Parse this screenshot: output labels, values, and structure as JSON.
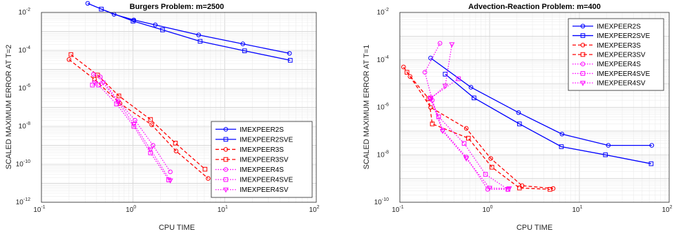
{
  "chart_data": [
    {
      "type": "line",
      "title": "Burgers Problem: m=2500",
      "xlabel": "CPU TIME",
      "ylabel": "SCALED MAXIMUM ERROR AT T=2",
      "xscale": "log",
      "yscale": "log",
      "xlim": [
        0.1,
        100
      ],
      "ylim": [
        1e-12,
        0.01
      ],
      "grid": true,
      "legend_position": "bottom-right",
      "series": [
        {
          "name": "IMEXPEER2S",
          "color": "#0000ff",
          "dash": "solid",
          "marker": "circle",
          "x": [
            0.32,
            0.62,
            1.02,
            1.75,
            5.2,
            15.8,
            51
          ],
          "y": [
            0.03,
            0.008,
            0.004,
            0.0022,
            0.00065,
            0.00022,
            7e-05
          ]
        },
        {
          "name": "IMEXPEER2SVE",
          "color": "#0000ff",
          "dash": "solid",
          "marker": "square",
          "x": [
            0.45,
            1.0,
            2.1,
            5.4,
            16.5,
            52
          ],
          "y": [
            0.015,
            0.0035,
            0.0012,
            0.0003,
            9.5e-05,
            3e-05
          ]
        },
        {
          "name": "IMEXPEER3S",
          "color": "#ff0000",
          "dash": "dashed",
          "marker": "circle",
          "x": [
            0.2,
            0.38,
            0.72,
            1.6,
            2.95,
            6.6
          ],
          "y": [
            3.3e-05,
            3e-06,
            1.6e-07,
            1.2e-08,
            5e-10,
            1.8e-11
          ]
        },
        {
          "name": "IMEXPEER3SV",
          "color": "#ff0000",
          "dash": "dashed",
          "marker": "square",
          "x": [
            0.21,
            0.41,
            0.7,
            1.55,
            2.9,
            6.1
          ],
          "y": [
            6e-05,
            5e-06,
            4e-07,
            2.3e-08,
            1.3e-09,
            5.5e-11
          ]
        },
        {
          "name": "IMEXPEER4S",
          "color": "#ff00ff",
          "dash": "dotted",
          "marker": "circle",
          "x": [
            0.37,
            0.44,
            0.69,
            1.05,
            1.65,
            2.55
          ],
          "y": [
            5.5e-06,
            4e-06,
            2.1e-07,
            2.1e-08,
            1e-09,
            4e-11
          ]
        },
        {
          "name": "IMEXPEER4SVE",
          "color": "#ff00ff",
          "dash": "dotted",
          "marker": "square",
          "x": [
            0.36,
            0.42,
            0.66,
            1.02,
            1.55,
            2.45
          ],
          "y": [
            1.5e-06,
            1.5e-06,
            1.5e-07,
            1e-08,
            4e-10,
            1.5e-11
          ]
        },
        {
          "name": "IMEXPEER4SV",
          "color": "#ff00ff",
          "dash": "dotted",
          "marker": "triangle",
          "x": [
            0.38,
            0.47,
            0.69,
            1.02,
            1.55,
            2.55
          ],
          "y": [
            2e-06,
            2e-06,
            1.8e-07,
            1.3e-08,
            6e-10,
            1.4e-11
          ]
        }
      ]
    },
    {
      "type": "line",
      "title": "Advection-Reaction Problem: m=400",
      "xlabel": "CPU TIME",
      "ylabel": "SCALED MAXIMUM ERROR AT T=1",
      "xscale": "log",
      "yscale": "log",
      "xlim": [
        0.1,
        100
      ],
      "ylim": [
        1e-10,
        0.01
      ],
      "grid": true,
      "legend_position": "top-right",
      "series": [
        {
          "name": "IMEXPEER2S",
          "color": "#0000ff",
          "dash": "solid",
          "marker": "circle",
          "x": [
            0.22,
            0.62,
            2.1,
            6.4,
            21,
            64
          ],
          "y": [
            0.00012,
            7e-06,
            6e-07,
            7.5e-08,
            2.5e-08,
            2.5e-08
          ]
        },
        {
          "name": "IMEXPEER2SVE",
          "color": "#0000ff",
          "dash": "solid",
          "marker": "square",
          "x": [
            0.32,
            0.67,
            2.15,
            6.3,
            19.5,
            63
          ],
          "y": [
            2.5e-05,
            2.5e-06,
            2e-07,
            2.2e-08,
            1e-08,
            4.2e-09
          ]
        },
        {
          "name": "IMEXPEER3S",
          "color": "#ff0000",
          "dash": "dashed",
          "marker": "circle",
          "x": [
            0.11,
            0.13,
            0.22,
            0.55,
            1.03,
            2.3,
            5.1
          ],
          "y": [
            5e-05,
            2e-05,
            1e-06,
            1.3e-07,
            7e-09,
            5e-10,
            3.8e-10
          ]
        },
        {
          "name": "IMEXPEER3SV",
          "color": "#ff0000",
          "dash": "dashed",
          "marker": "square",
          "x": [
            0.12,
            0.21,
            0.23,
            0.58,
            1.06,
            2.15,
            4.7
          ],
          "y": [
            3e-05,
            2.3e-06,
            2e-07,
            5e-08,
            3e-09,
            4e-10,
            3.5e-10
          ]
        },
        {
          "name": "IMEXPEER4S",
          "color": "#ff00ff",
          "dash": "dotted",
          "marker": "circle",
          "x": [
            0.28,
            0.19,
            0.23,
            0.3,
            0.55,
            0.95,
            1.6
          ],
          "y": [
            0.0005,
            3e-05,
            2e-06,
            1.1e-07,
            8e-09,
            3.5e-10,
            3.5e-10
          ]
        },
        {
          "name": "IMEXPEER4SVE",
          "color": "#ff00ff",
          "dash": "dotted",
          "marker": "square",
          "x": [
            0.45,
            0.22,
            0.27,
            0.52,
            0.9,
            1.6
          ],
          "y": [
            1.6e-05,
            2.5e-06,
            4e-07,
            3e-08,
            1.5e-09,
            3.5e-10
          ]
        },
        {
          "name": "IMEXPEER4SV",
          "color": "#ff00ff",
          "dash": "dotted",
          "marker": "triangle",
          "x": [
            0.38,
            0.32,
            0.22,
            0.3,
            0.55,
            1.0,
            1.65
          ],
          "y": [
            0.00045,
            8e-06,
            2.3e-06,
            1e-07,
            7e-09,
            4e-10,
            3.8e-10
          ]
        }
      ]
    }
  ]
}
